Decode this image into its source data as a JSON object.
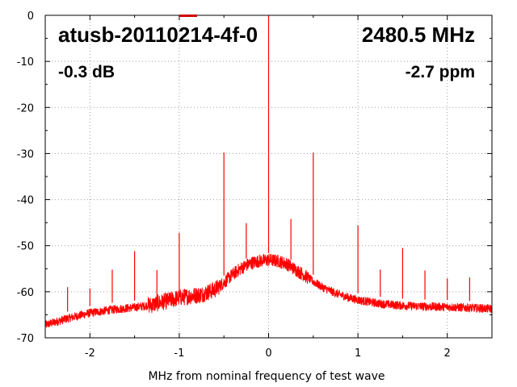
{
  "chart_data": {
    "type": "line",
    "title": "",
    "xlabel": "MHz from nominal frequency of test wave",
    "ylabel": "",
    "xlim": [
      -2.5,
      2.5
    ],
    "ylim": [
      -70,
      0
    ],
    "x_ticks": [
      -2,
      -1,
      0,
      1,
      2
    ],
    "y_ticks": [
      0,
      -10,
      -20,
      -30,
      -40,
      -50,
      -60,
      -70
    ],
    "grid": true,
    "legend": "top-center",
    "annotations": {
      "device": "atusb-20110214-4f-0",
      "frequency": "2480.5 MHz",
      "level": "-0.3 dB",
      "offset": "-2.7 ppm"
    },
    "colors": {
      "series": "#ff0000",
      "legend_swatch": "#cc0000",
      "grid": "#a0a0a0"
    },
    "series": [
      {
        "noise_floor": [
          [
            -2.5,
            -67.2
          ],
          [
            -2.25,
            -65.8
          ],
          [
            -2.0,
            -64.6
          ],
          [
            -1.75,
            -63.9
          ],
          [
            -1.5,
            -63.4
          ],
          [
            -1.3,
            -62.8
          ],
          [
            -1.25,
            -62.5
          ],
          [
            -1.1,
            -61.8
          ],
          [
            -1.0,
            -61.3
          ],
          [
            -0.9,
            -61.0
          ],
          [
            -0.75,
            -60.6
          ],
          [
            -0.6,
            -59.5
          ],
          [
            -0.5,
            -58.0
          ],
          [
            -0.4,
            -56.2
          ],
          [
            -0.3,
            -54.8
          ],
          [
            -0.2,
            -53.8
          ],
          [
            -0.1,
            -53.3
          ],
          [
            0.0,
            -53.1
          ],
          [
            0.1,
            -53.3
          ],
          [
            0.2,
            -53.9
          ],
          [
            0.3,
            -55.2
          ],
          [
            0.4,
            -56.4
          ],
          [
            0.5,
            -57.8
          ],
          [
            0.6,
            -59.0
          ],
          [
            0.75,
            -60.3
          ],
          [
            0.9,
            -61.3
          ],
          [
            1.0,
            -61.8
          ],
          [
            1.25,
            -62.6
          ],
          [
            1.5,
            -63.0
          ],
          [
            1.75,
            -63.2
          ],
          [
            2.0,
            -63.3
          ],
          [
            2.25,
            -63.5
          ],
          [
            2.5,
            -63.7
          ]
        ],
        "spurs": [
          [
            -2.25,
            -59.0
          ],
          [
            -2.0,
            -59.3
          ],
          [
            -1.75,
            -55.2
          ],
          [
            -1.5,
            -51.2
          ],
          [
            -1.25,
            -55.3
          ],
          [
            -1.0,
            -47.2
          ],
          [
            -0.5,
            -29.8
          ],
          [
            -0.25,
            -45.1
          ],
          [
            0.0,
            0.0
          ],
          [
            0.25,
            -44.2
          ],
          [
            0.5,
            -29.8
          ],
          [
            1.0,
            -45.6
          ],
          [
            1.25,
            -55.2
          ],
          [
            1.5,
            -50.5
          ],
          [
            1.75,
            -55.4
          ],
          [
            2.0,
            -57.1
          ],
          [
            2.25,
            -56.9
          ]
        ]
      }
    ]
  }
}
